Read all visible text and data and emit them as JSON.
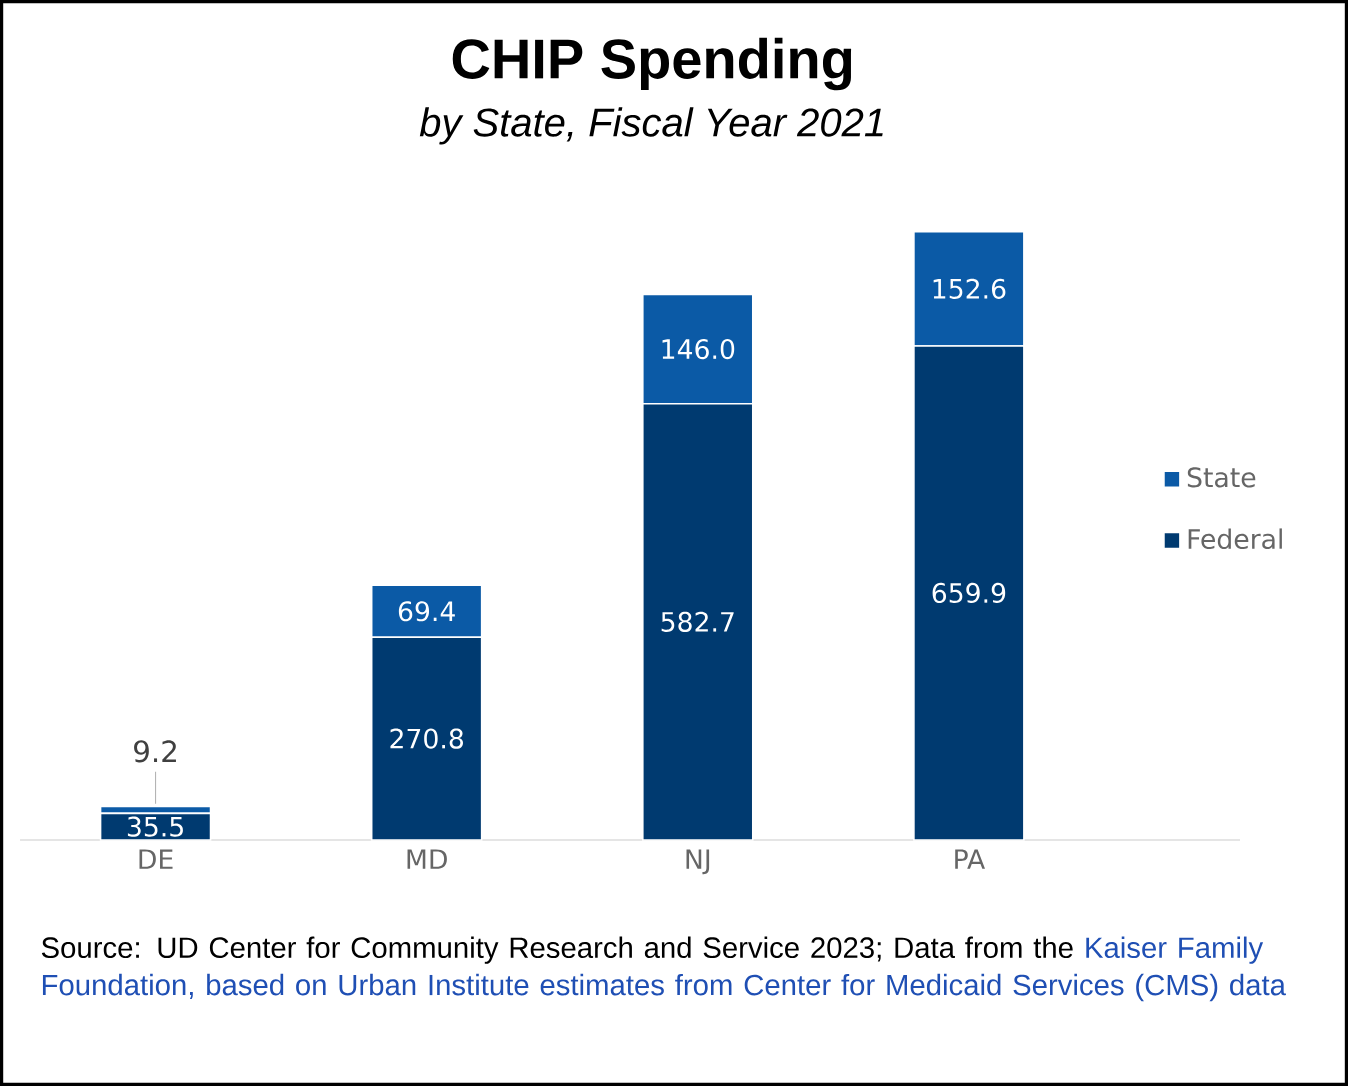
{
  "chart_data": {
    "type": "bar",
    "stacked": true,
    "title": "CHIP Spending",
    "subtitle": "by State, Fiscal Year 2021",
    "categories": [
      "DE",
      "MD",
      "NJ",
      "PA"
    ],
    "series": [
      {
        "name": "Federal",
        "color": "#003a70",
        "values": [
          35.5,
          270.8,
          582.7,
          659.9
        ],
        "value_labels": [
          "35.5",
          "270.8",
          "582.7",
          "659.9"
        ]
      },
      {
        "name": "State",
        "color": "#0b5aa6",
        "values": [
          9.2,
          69.4,
          146.0,
          152.6
        ],
        "value_labels": [
          "9.2",
          "69.4",
          "146.0",
          "152.6"
        ]
      }
    ],
    "legend": "right",
    "annotations": [
      "Source: UD Center for Community Research and Service 2023; Data from the",
      "Kaiser Family Foundation, based on Urban Institute estimates from Center for Medicaid Services (CMS) data"
    ]
  }
}
